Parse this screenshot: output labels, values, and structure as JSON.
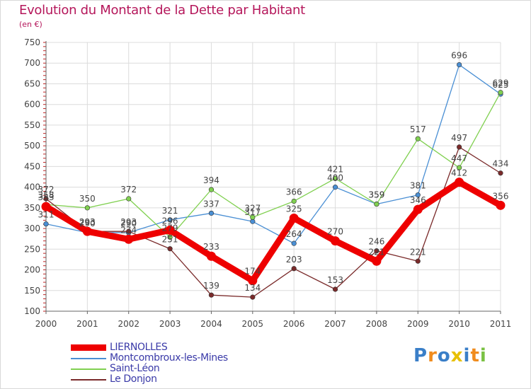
{
  "header": {
    "title": "Evolution du Montant de la Dette par Habitant",
    "subtitle": "(en €)"
  },
  "logo": {
    "text": "Proxiti",
    "letter_colors": [
      "#3a7fc8",
      "#f08c1e",
      "#3a7fc8",
      "#e8c000",
      "#3a7fc8",
      "#f08c1e",
      "#7ac143"
    ]
  },
  "chart_data": {
    "type": "line",
    "title": "Evolution du Montant de la Dette par Habitant",
    "subtitle": "(en €)",
    "x": [
      "2000",
      "2001",
      "2002",
      "2003",
      "2004",
      "2005",
      "2006",
      "2007",
      "2008",
      "2009",
      "2010",
      "2011"
    ],
    "ylim": [
      100,
      750
    ],
    "yticks": [
      100,
      150,
      200,
      250,
      300,
      350,
      400,
      450,
      500,
      550,
      600,
      650,
      700,
      750
    ],
    "grid": true,
    "legend_position": "bottom-left",
    "series": [
      {
        "name": "LIERNOLLES",
        "color": "#ee0000",
        "values": [
          353,
          293,
          274,
          296,
          233,
          174,
          325,
          270,
          221,
          346,
          412,
          356
        ],
        "labels": [
          "353",
          "293",
          "274",
          "296",
          "233",
          "174",
          "325",
          "270",
          "221",
          "346",
          "412",
          "356"
        ]
      },
      {
        "name": "Montcombroux-les-Mines",
        "color": "#4a8fd4",
        "values": [
          311,
          290,
          290,
          321,
          337,
          317,
          264,
          400,
          359,
          381,
          696,
          625
        ],
        "labels": [
          "311",
          "290",
          "290",
          "321",
          "337",
          "317",
          "264",
          "400",
          "359",
          "381",
          "696",
          "625"
        ]
      },
      {
        "name": "Saint-Léon",
        "color": "#80d050",
        "values": [
          358,
          350,
          372,
          279,
          394,
          327,
          366,
          421,
          359,
          517,
          447,
          629
        ],
        "labels": [
          "358",
          "350",
          "372",
          "279",
          "394",
          "327",
          "366",
          "421",
          "359",
          "517",
          "447",
          "629"
        ]
      },
      {
        "name": "Le Donjon",
        "color": "#7a2a2a",
        "values": [
          372,
          293,
          293,
          251,
          139,
          134,
          203,
          153,
          246,
          221,
          497,
          434
        ],
        "labels": [
          "372",
          "293",
          "293",
          "251",
          "139",
          "134",
          "203",
          "153",
          "246",
          "221",
          "497",
          "434"
        ]
      }
    ]
  }
}
